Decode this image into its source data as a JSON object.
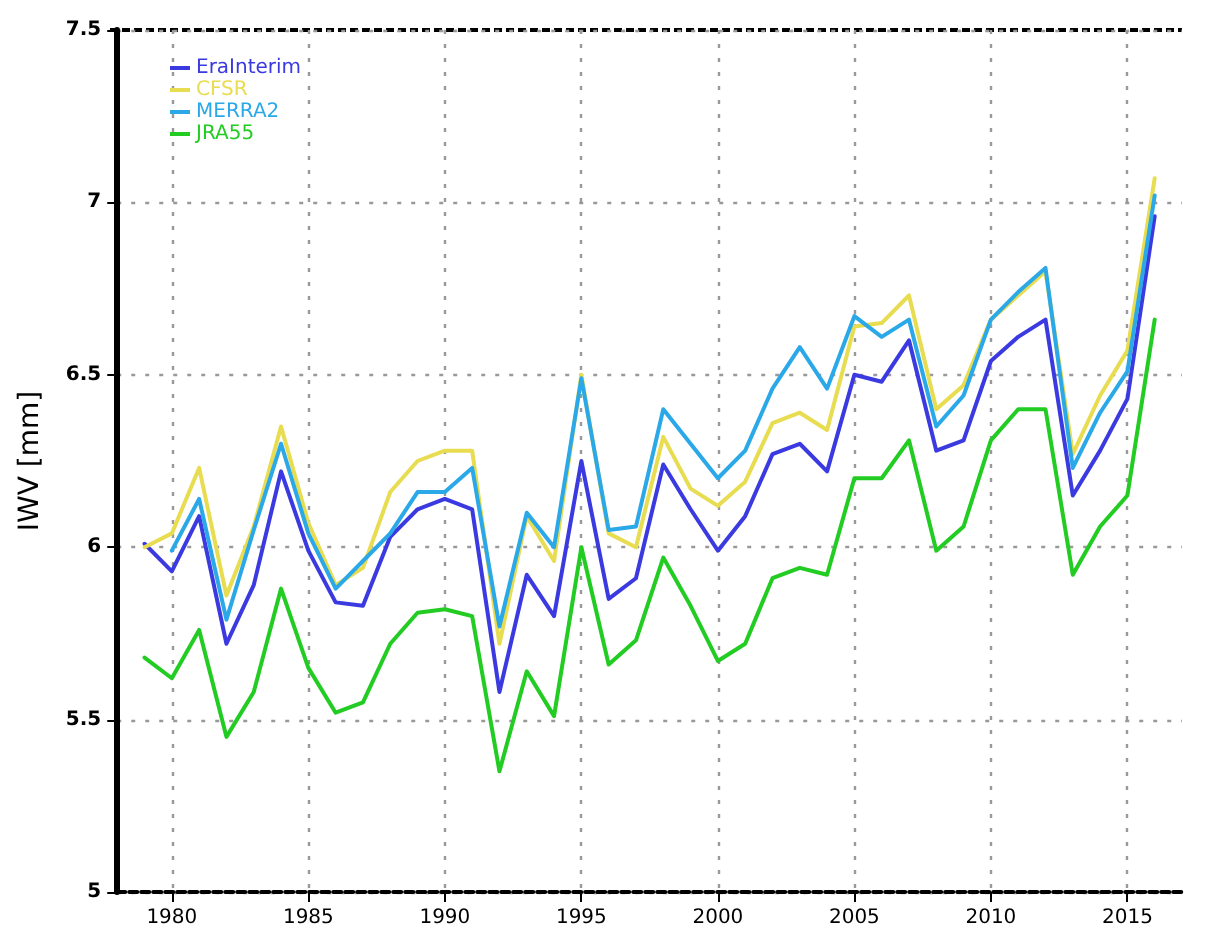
{
  "chart_data": {
    "type": "line",
    "ylabel": "IWV [mm]",
    "x": [
      1979,
      1980,
      1981,
      1982,
      1983,
      1984,
      1985,
      1986,
      1987,
      1988,
      1989,
      1990,
      1991,
      1992,
      1993,
      1994,
      1995,
      1996,
      1997,
      1998,
      1999,
      2000,
      2001,
      2002,
      2003,
      2004,
      2005,
      2006,
      2007,
      2008,
      2009,
      2010,
      2011,
      2012,
      2013,
      2014,
      2015,
      2016
    ],
    "series": [
      {
        "name": "EraInterim",
        "color": "#3a3ae0",
        "values": [
          6.01,
          5.93,
          6.09,
          5.72,
          5.89,
          6.22,
          5.99,
          5.84,
          5.83,
          6.03,
          6.11,
          6.14,
          6.11,
          5.58,
          5.92,
          5.8,
          6.25,
          5.85,
          5.91,
          6.24,
          6.11,
          5.99,
          6.09,
          6.27,
          6.3,
          6.22,
          6.5,
          6.48,
          6.6,
          6.28,
          6.31,
          6.54,
          6.61,
          6.66,
          6.15,
          6.28,
          6.43,
          6.96
        ]
      },
      {
        "name": "CFSR",
        "color": "#e8dc50",
        "values": [
          6.0,
          6.04,
          6.23,
          5.86,
          6.06,
          6.35,
          6.07,
          5.89,
          5.94,
          6.16,
          6.25,
          6.28,
          6.28,
          5.72,
          6.09,
          5.96,
          6.5,
          6.04,
          6.0,
          6.32,
          6.17,
          6.12,
          6.19,
          6.36,
          6.39,
          6.34,
          6.64,
          6.65,
          6.73,
          6.4,
          6.47,
          6.66,
          6.73,
          6.8,
          6.27,
          6.44,
          6.57,
          7.07
        ]
      },
      {
        "name": "MERRA2",
        "color": "#2aa8e8",
        "values": [
          null,
          5.99,
          6.14,
          5.79,
          6.05,
          6.3,
          6.04,
          5.88,
          5.96,
          6.04,
          6.16,
          6.16,
          6.23,
          5.77,
          6.1,
          6.0,
          6.49,
          6.05,
          6.06,
          6.4,
          6.3,
          6.2,
          6.28,
          6.46,
          6.58,
          6.46,
          6.67,
          6.61,
          6.66,
          6.35,
          6.44,
          6.66,
          6.74,
          6.81,
          6.23,
          6.39,
          6.51,
          7.02
        ]
      },
      {
        "name": "JRA55",
        "color": "#22cc22",
        "values": [
          5.68,
          5.62,
          5.76,
          5.45,
          5.58,
          5.88,
          5.65,
          5.52,
          5.55,
          5.72,
          5.81,
          5.82,
          5.8,
          5.35,
          5.64,
          5.51,
          6.0,
          5.66,
          5.73,
          5.97,
          5.83,
          5.67,
          5.72,
          5.91,
          5.94,
          5.92,
          6.2,
          6.2,
          6.31,
          5.99,
          6.06,
          6.31,
          6.4,
          6.4,
          5.92,
          6.06,
          6.15,
          6.66
        ]
      }
    ],
    "xlim": [
      1978,
      2017
    ],
    "xticks": [
      1980,
      1985,
      1990,
      1995,
      2000,
      2005,
      2010,
      2015
    ],
    "ylim": [
      5,
      7.5
    ],
    "yticks": [
      5,
      5.5,
      6,
      6.5,
      7,
      7.5
    ],
    "grid": true,
    "legend": "top left",
    "marker": "none",
    "line_style": "solid"
  }
}
